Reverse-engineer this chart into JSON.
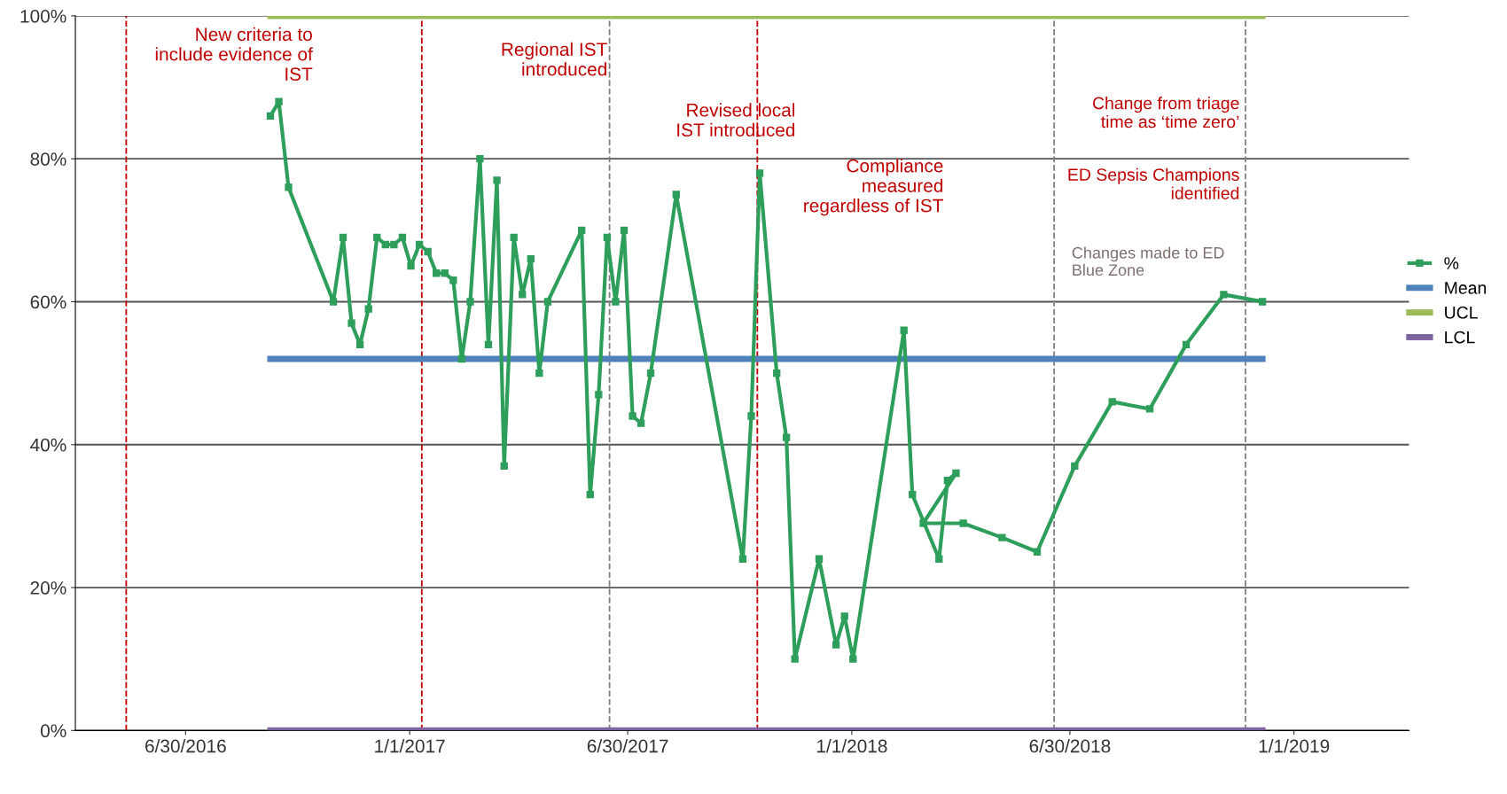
{
  "chart_data": {
    "type": "line",
    "grid": "y",
    "legend": "right",
    "xlim": [
      "2016-03-31",
      "2019-04-06"
    ],
    "ylim": [
      0,
      100
    ],
    "xticks": [
      {
        "value": "2016-06-30",
        "label": "6/30/2016"
      },
      {
        "value": "2017-01-01",
        "label": "1/1/2017"
      },
      {
        "value": "2017-06-30",
        "label": "6/30/2017"
      },
      {
        "value": "2018-01-01",
        "label": "1/1/2018"
      },
      {
        "value": "2018-06-30",
        "label": "6/30/2018"
      },
      {
        "value": "2019-01-01",
        "label": "1/1/2019"
      }
    ],
    "yticks": [
      {
        "value": 0,
        "label": "0%"
      },
      {
        "value": 20,
        "label": "20%"
      },
      {
        "value": 40,
        "label": "40%"
      },
      {
        "value": 60,
        "label": "60%"
      },
      {
        "value": 80,
        "label": "80%"
      },
      {
        "value": 100,
        "label": "100%"
      }
    ],
    "series": [
      {
        "name": "%",
        "color": "#2e9e5b",
        "marker": "square",
        "x": [
          "2016-09-08",
          "2016-09-15",
          "2016-09-23",
          "2016-10-30",
          "2016-11-07",
          "2016-11-14",
          "2016-11-21",
          "2016-11-28",
          "2016-12-05",
          "2016-12-12",
          "2016-12-19",
          "2016-12-26",
          "2017-01-02",
          "2017-01-09",
          "2017-01-16",
          "2017-01-23",
          "2017-01-30",
          "2017-02-06",
          "2017-02-13",
          "2017-02-20",
          "2017-02-28",
          "2017-03-07",
          "2017-03-14",
          "2017-03-20",
          "2017-03-28",
          "2017-04-04",
          "2017-04-11",
          "2017-04-18",
          "2017-04-25",
          "2017-05-23",
          "2017-05-30",
          "2017-06-06",
          "2017-06-13",
          "2017-06-20",
          "2017-06-27",
          "2017-07-04",
          "2017-07-11",
          "2017-07-19",
          "2017-08-09",
          "2017-10-03",
          "2017-10-10",
          "2017-10-17",
          "2017-10-31",
          "2017-11-08",
          "2017-11-15",
          "2017-12-05",
          "2017-12-19",
          "2017-12-26",
          "2018-01-02",
          "2018-02-13",
          "2018-02-20",
          "2018-03-14",
          "2018-03-21",
          "2018-03-28",
          "2018-03-01",
          "2018-04-03",
          "2018-05-05",
          "2018-06-03",
          "2018-07-04",
          "2018-08-04",
          "2018-09-04",
          "2018-10-04",
          "2018-11-04",
          "2018-12-06"
        ],
        "values": [
          86,
          88,
          76,
          60,
          69,
          57,
          54,
          59,
          69,
          68,
          68,
          69,
          65,
          68,
          67,
          64,
          64,
          63,
          52,
          60,
          80,
          54,
          77,
          37,
          69,
          61,
          66,
          50,
          60,
          70,
          33,
          47,
          69,
          60,
          70,
          44,
          43,
          50,
          75,
          24,
          44,
          78,
          50,
          41,
          10,
          24,
          12,
          16,
          10,
          56,
          33,
          24,
          35,
          36,
          29,
          29,
          27,
          25,
          37,
          46,
          45,
          54,
          61,
          60
        ]
      },
      {
        "name": "Mean",
        "color": "#4f81bd",
        "x": [
          "2016-09-08",
          "2018-12-06"
        ],
        "values": [
          52,
          52
        ]
      },
      {
        "name": "UCL",
        "color": "#9bbb59",
        "x": [
          "2016-09-08",
          "2018-12-06"
        ],
        "values": [
          100,
          100
        ]
      },
      {
        "name": "LCL",
        "color": "#8064a2",
        "x": [
          "2016-09-08",
          "2018-12-06"
        ],
        "values": [
          0,
          0
        ]
      }
    ],
    "ref_lines": [
      {
        "axis": "x",
        "value": "2016-05-12",
        "color": "#c00000",
        "line_style": "dashed"
      },
      {
        "axis": "x",
        "value": "2017-01-11",
        "color": "#c00000",
        "line_style": "dashed"
      },
      {
        "axis": "x",
        "value": "2017-06-15",
        "color": "#808080",
        "line_style": "dashed"
      },
      {
        "axis": "x",
        "value": "2017-10-15",
        "color": "#c00000",
        "line_style": "dashed"
      },
      {
        "axis": "x",
        "value": "2018-06-17",
        "color": "#808080",
        "line_style": "dashed"
      },
      {
        "axis": "x",
        "value": "2018-11-22",
        "color": "#808080",
        "line_style": "dashed"
      }
    ],
    "annotations": [
      "New criteria to\ninclude evidence of\nIST",
      "Regional IST\nintroduced",
      "Revised local\nIST introduced",
      "Compliance\nmeasured\nregardless of IST",
      "Change from triage\ntime as ‘time zero’",
      "ED Sepsis Champions\nidentified",
      "Changes made to ED\nBlue Zone"
    ]
  }
}
